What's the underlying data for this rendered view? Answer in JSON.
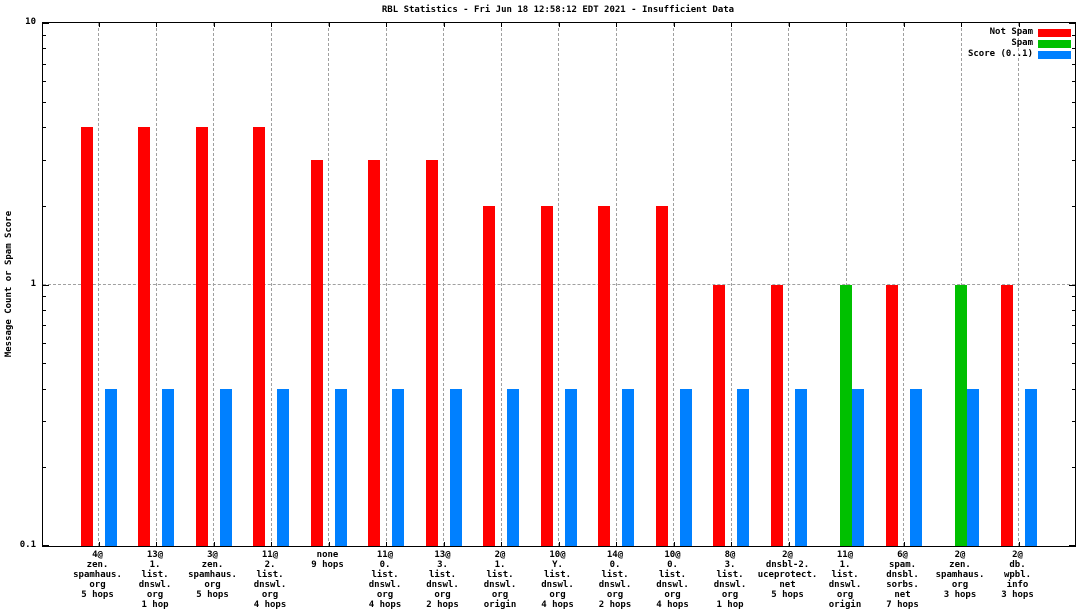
{
  "chart_data": {
    "type": "bar",
    "title": "RBL Statistics - Fri Jun 18 12:58:12 EDT 2021 - Insufficient Data",
    "ylabel": "Message Count or Spam Score",
    "xlabel": "",
    "y_scale": "log",
    "ylim": [
      0.1,
      10
    ],
    "yticks": [
      0.1,
      1,
      10
    ],
    "ytick_labels": [
      "0.1",
      "1",
      "10"
    ],
    "grid": {
      "vertical_at_categories": true,
      "horizontal_at": [
        1
      ],
      "style": "dashed-gray"
    },
    "legend_position": "top-right-inside",
    "background_color": "#ffffff",
    "axis_color": "#000000",
    "grid_color": "#a0a0a0",
    "categories": [
      [
        "4@",
        "zen.",
        "spamhaus.",
        "org",
        "5 hops"
      ],
      [
        "13@",
        "1.",
        "list.",
        "dnswl.",
        "org",
        "1 hop"
      ],
      [
        "3@",
        "zen.",
        "spamhaus.",
        "org",
        "5 hops"
      ],
      [
        "11@",
        "2.",
        "list.",
        "dnswl.",
        "org",
        "4 hops"
      ],
      [
        "none",
        "9 hops"
      ],
      [
        "11@",
        "0.",
        "list.",
        "dnswl.",
        "org",
        "4 hops"
      ],
      [
        "13@",
        "3.",
        "list.",
        "dnswl.",
        "org",
        "2 hops"
      ],
      [
        "2@",
        "1.",
        "list.",
        "dnswl.",
        "org",
        "origin"
      ],
      [
        "10@",
        "Y.",
        "list.",
        "dnswl.",
        "org",
        "4 hops"
      ],
      [
        "14@",
        "0.",
        "list.",
        "dnswl.",
        "org",
        "2 hops"
      ],
      [
        "10@",
        "0.",
        "list.",
        "dnswl.",
        "org",
        "4 hops"
      ],
      [
        "8@",
        "3.",
        "list.",
        "dnswl.",
        "org",
        "1 hop"
      ],
      [
        "2@",
        "dnsbl-2.",
        "uceprotect.",
        "net",
        "5 hops"
      ],
      [
        "11@",
        "1.",
        "list.",
        "dnswl.",
        "org",
        "origin"
      ],
      [
        "6@",
        "spam.",
        "dnsbl.",
        "sorbs.",
        "net",
        "7 hops"
      ],
      [
        "2@",
        "zen.",
        "spamhaus.",
        "org",
        "3 hops"
      ],
      [
        "2@",
        "db.",
        "wpbl.",
        "info",
        "3 hops"
      ]
    ],
    "series": [
      {
        "name": "Not Spam",
        "color": "#ff0000",
        "values": [
          4,
          4,
          4,
          4,
          3,
          3,
          3,
          2,
          2,
          2,
          2,
          1,
          1,
          0,
          1,
          0,
          1
        ]
      },
      {
        "name": "Spam",
        "color": "#00c000",
        "values": [
          0,
          0,
          0,
          0,
          0,
          0,
          0,
          0,
          0,
          0,
          0,
          0,
          0,
          1,
          0,
          1,
          0
        ]
      },
      {
        "name": "Score (0..1)",
        "color": "#0080ff",
        "values": [
          0.4,
          0.4,
          0.4,
          0.4,
          0.4,
          0.4,
          0.4,
          0.4,
          0.4,
          0.4,
          0.4,
          0.4,
          0.4,
          0.4,
          0.4,
          0.4,
          0.4
        ]
      }
    ]
  }
}
